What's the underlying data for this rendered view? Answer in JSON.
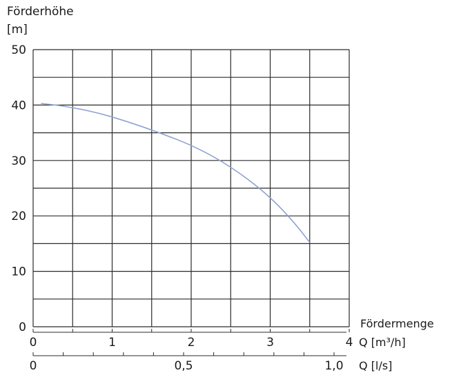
{
  "chart_data": {
    "type": "line",
    "ylabel_line1": "Förderhöhe",
    "ylabel_line2": "[m]",
    "xlabel_title": "Fördermenge",
    "xlabel_m3h": "Q [m³/h]",
    "xlabel_ls": "Q [l/s]",
    "xlim": [
      0,
      4
    ],
    "ylim": [
      0,
      50
    ],
    "grid": true,
    "y_ticks": [
      {
        "value": 0,
        "label": "0"
      },
      {
        "value": 10,
        "label": "10"
      },
      {
        "value": 20,
        "label": "20"
      },
      {
        "value": 30,
        "label": "30"
      },
      {
        "value": 40,
        "label": "40"
      },
      {
        "value": 50,
        "label": "50"
      }
    ],
    "x_ticks_m3h": [
      {
        "value": 0,
        "label": "0"
      },
      {
        "value": 1,
        "label": "1"
      },
      {
        "value": 2,
        "label": "2"
      },
      {
        "value": 3,
        "label": "3"
      },
      {
        "value": 4,
        "label": "4"
      }
    ],
    "x_ticks_ls": [
      {
        "value": 0,
        "label": "0"
      },
      {
        "value": 0.5,
        "label": "0,5"
      },
      {
        "value": 1.0,
        "label": "1,0"
      }
    ],
    "series": [
      {
        "color": "#8fa3d0",
        "x": [
          0.1,
          0.4,
          0.8,
          1.2,
          1.6,
          2.0,
          2.4,
          2.8,
          3.1,
          3.35,
          3.5
        ],
        "y": [
          40.3,
          39.8,
          38.7,
          37.0,
          35.0,
          32.8,
          29.8,
          25.8,
          22.0,
          18.0,
          15.2
        ]
      }
    ],
    "colors": {
      "grid": "#2a2a2a",
      "text": "#1a1a1a"
    }
  }
}
